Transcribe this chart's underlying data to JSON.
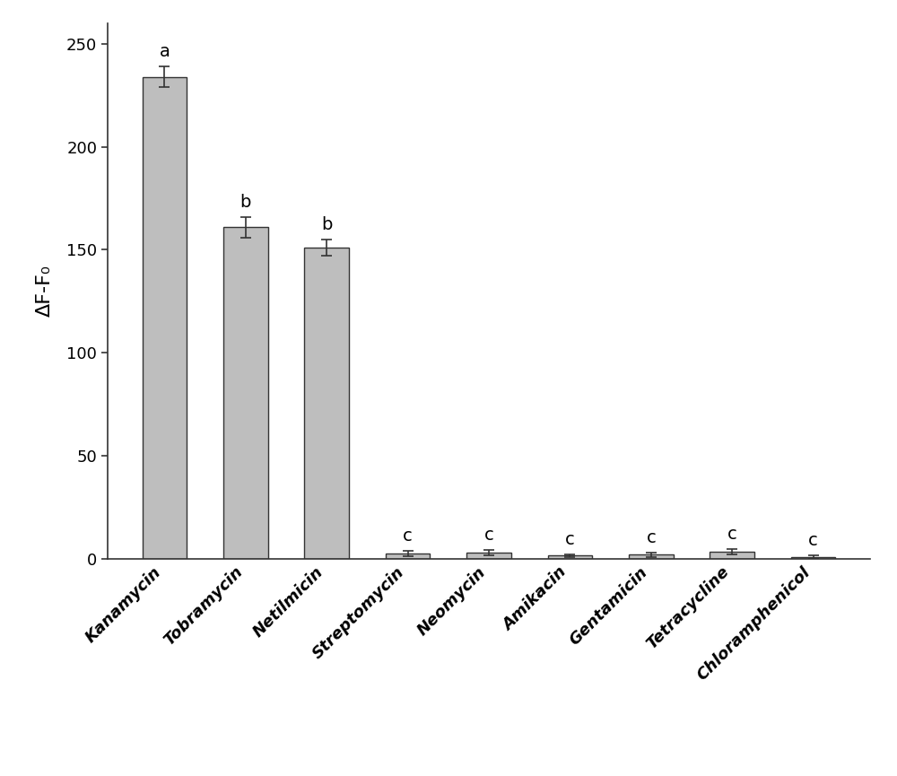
{
  "categories": [
    "Kanamycin",
    "Tobramycin",
    "Netilmicin",
    "Streptomycin",
    "Neomycin",
    "Amikacin",
    "Gentamicin",
    "Tetracycline",
    "Chloramphenicol"
  ],
  "values": [
    234,
    161,
    151,
    2.5,
    3.0,
    1.5,
    2.0,
    3.5,
    1.0
  ],
  "errors": [
    5,
    5,
    4,
    1.2,
    1.2,
    0.8,
    1.0,
    1.2,
    0.6
  ],
  "labels": [
    "a",
    "b",
    "b",
    "c",
    "c",
    "c",
    "c",
    "c",
    "c"
  ],
  "bar_color": "#bebebe",
  "bar_edgecolor": "#333333",
  "error_color": "#333333",
  "ylabel": "ΔF-F₀",
  "ylim": [
    0,
    260
  ],
  "yticks": [
    0,
    50,
    100,
    150,
    200,
    250
  ],
  "ylabel_fontsize": 16,
  "tick_fontsize": 13,
  "stat_label_fontsize": 14,
  "xtick_fontsize": 13,
  "background_color": "#ffffff"
}
